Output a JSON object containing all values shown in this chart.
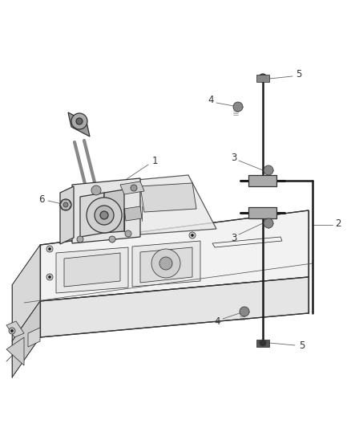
{
  "bg_color": "#ffffff",
  "line_color": "#333333",
  "dark_color": "#1a1a1a",
  "mid_color": "#555555",
  "label_color": "#333333",
  "figsize": [
    4.38,
    5.33
  ],
  "dpi": 100,
  "lw_main": 0.9,
  "lw_thin": 0.55,
  "lw_thick": 1.3,
  "label_fontsize": 8.5
}
